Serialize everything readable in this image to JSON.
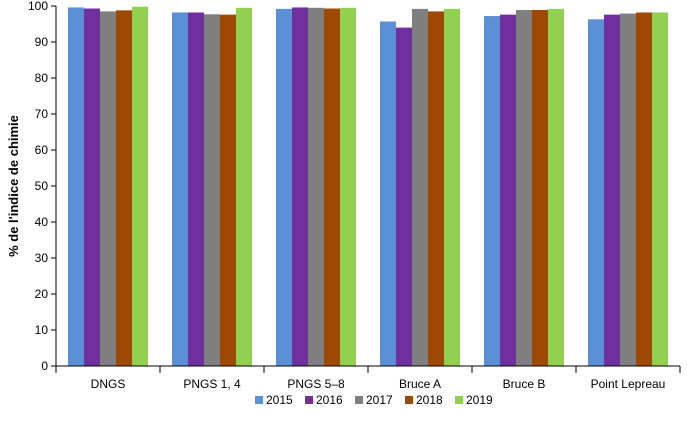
{
  "chart_data": {
    "type": "bar",
    "title": "",
    "xlabel": "",
    "ylabel": "% de l'indice de chimie",
    "ylim": [
      0,
      100
    ],
    "yticks": [
      0,
      10,
      20,
      30,
      40,
      50,
      60,
      70,
      80,
      90,
      100
    ],
    "grid": false,
    "legend_position": "bottom-center",
    "categories": [
      "DNGS",
      "PNGS 1, 4",
      "PNGS 5–8",
      "Bruce A",
      "Bruce B",
      "Point Lepreau"
    ],
    "series": [
      {
        "name": "2015",
        "color": "#5B8FD6",
        "values": [
          99.6,
          98.2,
          99.2,
          95.7,
          97.2,
          96.3
        ]
      },
      {
        "name": "2016",
        "color": "#7030A0",
        "values": [
          99.3,
          98.2,
          99.6,
          94.0,
          97.6,
          97.6
        ]
      },
      {
        "name": "2017",
        "color": "#7F7F7F",
        "values": [
          98.5,
          97.7,
          99.5,
          99.2,
          98.9,
          97.9
        ]
      },
      {
        "name": "2018",
        "color": "#9E4A06",
        "values": [
          98.8,
          97.6,
          99.3,
          98.5,
          98.9,
          98.2
        ]
      },
      {
        "name": "2019",
        "color": "#92D050",
        "values": [
          99.8,
          99.5,
          99.5,
          99.2,
          99.2,
          98.2
        ]
      }
    ]
  }
}
